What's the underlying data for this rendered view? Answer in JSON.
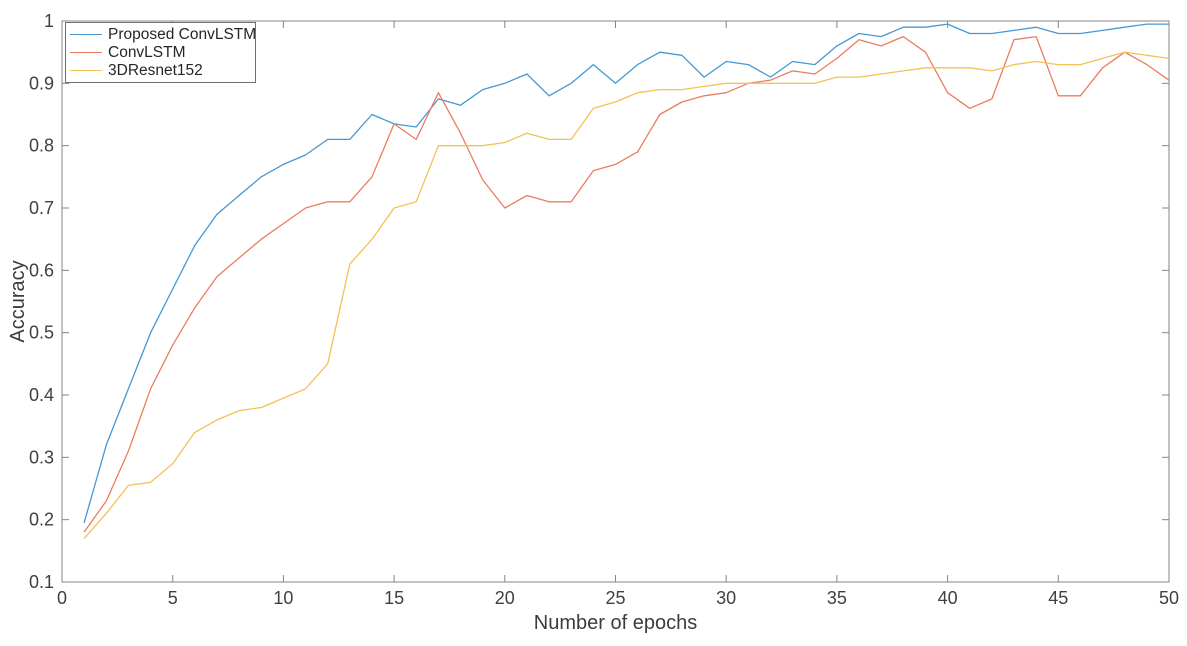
{
  "figure": {
    "background": "#ffffff",
    "axis_color": "#858585",
    "tick_label_color": "#404040",
    "axis_label_color": "#3c3c3c",
    "legend_border_color": "#707070"
  },
  "chart_data": {
    "type": "line",
    "title": "",
    "xlabel": "Number of epochs",
    "ylabel": "Accuracy",
    "xlim": [
      0,
      50
    ],
    "ylim": [
      0.1,
      1
    ],
    "xticks": [
      0,
      5,
      10,
      15,
      20,
      25,
      30,
      35,
      40,
      45,
      50
    ],
    "xtick_labels": [
      "0",
      "5",
      "10",
      "15",
      "20",
      "25",
      "30",
      "35",
      "40",
      "45",
      "50"
    ],
    "yticks": [
      0.1,
      0.2,
      0.3,
      0.4,
      0.5,
      0.6,
      0.7,
      0.8,
      0.9,
      1
    ],
    "ytick_labels": [
      "0.1",
      "0.2",
      "0.3",
      "0.4",
      "0.5",
      "0.6",
      "0.7",
      "0.8",
      "0.9",
      "1"
    ],
    "grid": false,
    "legend_position": "top-left-inside",
    "x": [
      1,
      2,
      3,
      4,
      5,
      6,
      7,
      8,
      9,
      10,
      11,
      12,
      13,
      14,
      15,
      16,
      17,
      18,
      19,
      20,
      21,
      22,
      23,
      24,
      25,
      26,
      27,
      28,
      29,
      30,
      31,
      32,
      33,
      34,
      35,
      36,
      37,
      38,
      39,
      40,
      41,
      42,
      43,
      44,
      45,
      46,
      47,
      48,
      49,
      50
    ],
    "series": [
      {
        "name": "Proposed ConvLSTM",
        "color": "#4598d4",
        "values": [
          0.195,
          0.32,
          0.41,
          0.5,
          0.57,
          0.64,
          0.69,
          0.72,
          0.75,
          0.77,
          0.785,
          0.81,
          0.81,
          0.85,
          0.835,
          0.83,
          0.875,
          0.865,
          0.89,
          0.9,
          0.915,
          0.88,
          0.9,
          0.93,
          0.9,
          0.93,
          0.95,
          0.945,
          0.91,
          0.935,
          0.93,
          0.91,
          0.935,
          0.93,
          0.96,
          0.98,
          0.975,
          0.99,
          0.99,
          0.995,
          0.98,
          0.98,
          0.985,
          0.99,
          0.98,
          0.98,
          0.985,
          0.99,
          0.995,
          0.995
        ]
      },
      {
        "name": "ConvLSTM",
        "color": "#ec7c5f",
        "values": [
          0.18,
          0.23,
          0.31,
          0.41,
          0.48,
          0.54,
          0.59,
          0.62,
          0.65,
          0.675,
          0.7,
          0.71,
          0.71,
          0.75,
          0.835,
          0.81,
          0.885,
          0.82,
          0.745,
          0.7,
          0.72,
          0.71,
          0.71,
          0.76,
          0.77,
          0.79,
          0.85,
          0.87,
          0.88,
          0.885,
          0.9,
          0.905,
          0.92,
          0.915,
          0.94,
          0.97,
          0.96,
          0.975,
          0.95,
          0.885,
          0.86,
          0.875,
          0.97,
          0.975,
          0.88,
          0.88,
          0.925,
          0.95,
          0.93,
          0.905
        ]
      },
      {
        "name": "3DResnet152",
        "color": "#f2c254",
        "values": [
          0.17,
          0.21,
          0.255,
          0.26,
          0.29,
          0.34,
          0.36,
          0.375,
          0.38,
          0.395,
          0.41,
          0.45,
          0.61,
          0.65,
          0.7,
          0.71,
          0.8,
          0.8,
          0.8,
          0.805,
          0.82,
          0.81,
          0.81,
          0.86,
          0.87,
          0.885,
          0.89,
          0.89,
          0.895,
          0.9,
          0.9,
          0.9,
          0.9,
          0.9,
          0.91,
          0.91,
          0.915,
          0.92,
          0.925,
          0.925,
          0.925,
          0.92,
          0.93,
          0.935,
          0.93,
          0.93,
          0.94,
          0.95,
          0.945,
          0.94
        ]
      }
    ]
  }
}
